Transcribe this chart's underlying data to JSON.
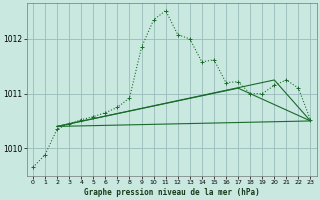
{
  "title": "Graphe pression niveau de la mer (hPa)",
  "bg_color": "#c8e8e0",
  "grid_color": "#99bbbb",
  "line_color": "#1a6b2a",
  "ylim": [
    1009.5,
    1012.65
  ],
  "yticks": [
    1010,
    1011,
    1012
  ],
  "xlim": [
    -0.5,
    23.5
  ],
  "xticks": [
    0,
    1,
    2,
    3,
    4,
    5,
    6,
    7,
    8,
    9,
    10,
    11,
    12,
    13,
    14,
    15,
    16,
    17,
    18,
    19,
    20,
    21,
    22,
    23
  ],
  "series1_x": [
    0,
    1,
    2,
    3,
    4,
    5,
    6,
    7,
    8,
    9,
    10,
    11,
    12,
    13,
    14,
    15,
    16,
    17,
    18,
    19,
    20,
    21,
    22,
    23
  ],
  "series1_y": [
    1009.65,
    1009.88,
    1010.35,
    1010.45,
    1010.52,
    1010.58,
    1010.65,
    1010.75,
    1010.92,
    1011.85,
    1012.35,
    1012.52,
    1012.08,
    1012.0,
    1011.58,
    1011.62,
    1011.2,
    1011.22,
    1011.0,
    1011.0,
    1011.15,
    1011.25,
    1011.1,
    1010.52
  ],
  "series2_x": [
    2,
    23
  ],
  "series2_y": [
    1010.4,
    1010.5
  ],
  "series3_x": [
    2,
    17,
    23
  ],
  "series3_y": [
    1010.4,
    1011.1,
    1010.5
  ],
  "series4_x": [
    2,
    20,
    23
  ],
  "series4_y": [
    1010.4,
    1011.25,
    1010.5
  ]
}
